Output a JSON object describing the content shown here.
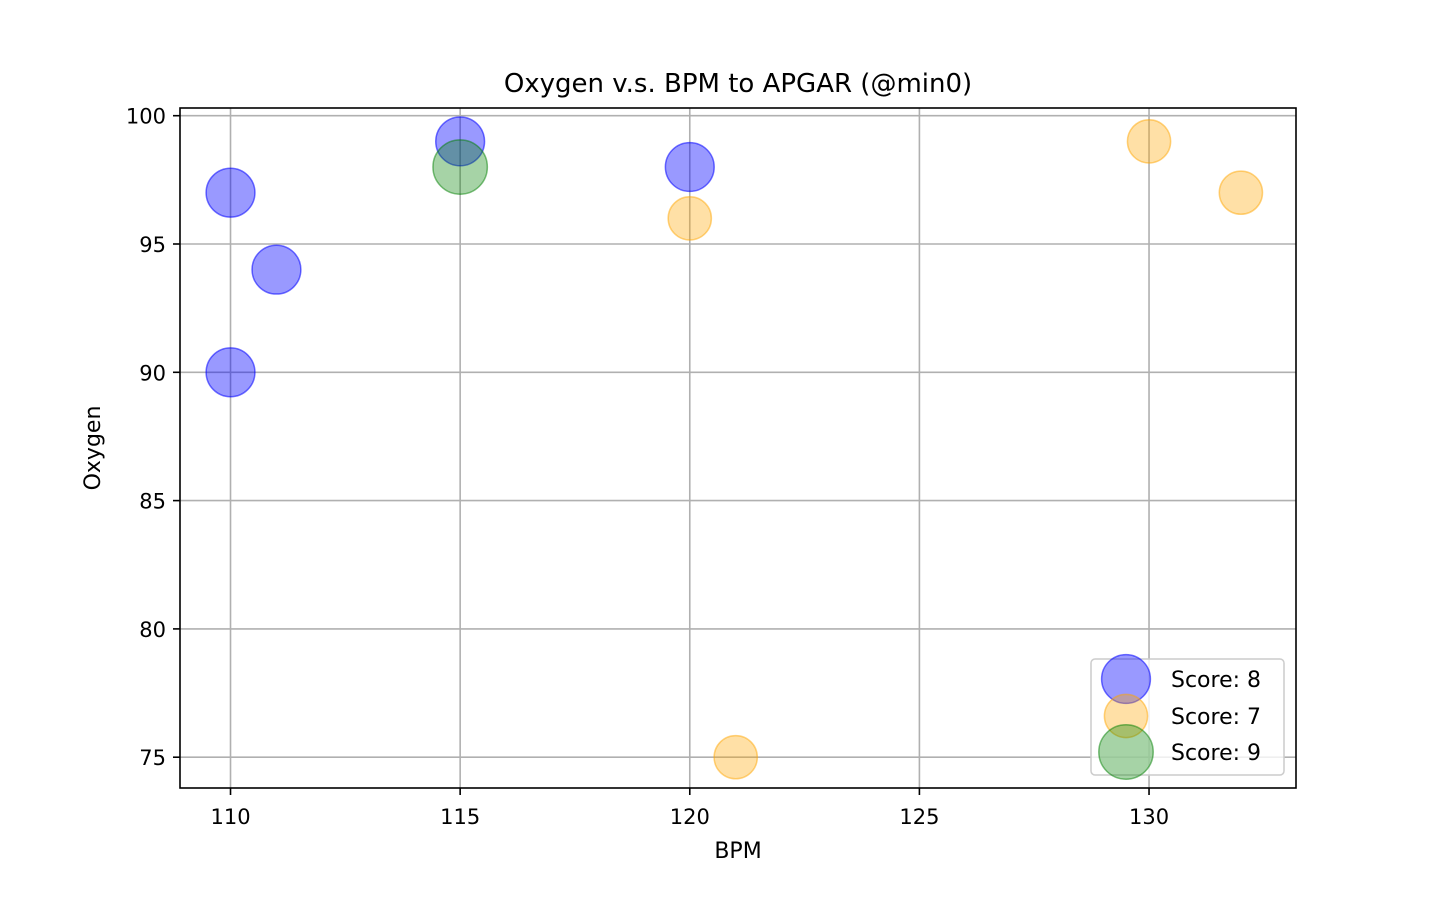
{
  "chart_data": {
    "type": "scatter",
    "title": "Oxygen v.s. BPM to APGAR (@min0)",
    "xlabel": "BPM",
    "ylabel": "Oxygen",
    "xlim": [
      108.9,
      133.2
    ],
    "ylim": [
      73.8,
      100.3
    ],
    "xticks": [
      110,
      115,
      120,
      125,
      130
    ],
    "yticks": [
      75,
      80,
      85,
      90,
      95,
      100
    ],
    "grid": true,
    "legend_position": "lower-right",
    "series": [
      {
        "name": "Score: 8",
        "color": "#0000ff",
        "alpha": 0.4,
        "marker_size": 8,
        "points": [
          {
            "x": 110,
            "y": 97
          },
          {
            "x": 111,
            "y": 94
          },
          {
            "x": 110,
            "y": 90
          },
          {
            "x": 115,
            "y": 99
          },
          {
            "x": 120,
            "y": 98
          }
        ]
      },
      {
        "name": "Score: 7",
        "color": "#ffa500",
        "alpha": 0.35,
        "marker_size": 7,
        "points": [
          {
            "x": 130,
            "y": 99
          },
          {
            "x": 132,
            "y": 97
          },
          {
            "x": 120,
            "y": 96
          },
          {
            "x": 121,
            "y": 75
          }
        ]
      },
      {
        "name": "Score: 9",
        "color": "#008000",
        "alpha": 0.35,
        "marker_size": 9,
        "points": [
          {
            "x": 115,
            "y": 98
          }
        ]
      }
    ]
  }
}
